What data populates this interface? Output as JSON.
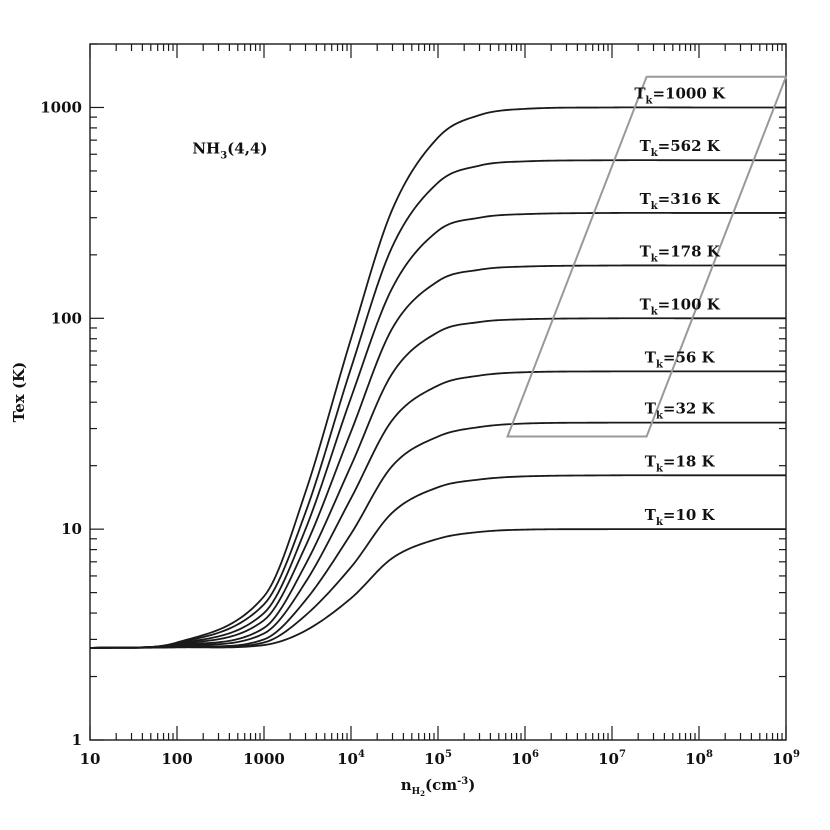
{
  "chart_data": {
    "type": "line",
    "xlabel": "n_H2(cm^-3)",
    "xlabel_parts": {
      "n": "n",
      "sub": "H",
      "subsub": "2",
      "rest": "(cm",
      "sup": "-3",
      "close": ")"
    },
    "ylabel": "Tex (K)",
    "xscale": "log",
    "yscale": "log",
    "xlim": [
      10,
      1000000000
    ],
    "ylim": [
      1,
      2000
    ],
    "x_tick_labels": [
      {
        "value": 10,
        "base": "10",
        "exp": ""
      },
      {
        "value": 100,
        "base": "100",
        "exp": ""
      },
      {
        "value": 1000,
        "base": "1000",
        "exp": ""
      },
      {
        "value": 10000,
        "base": "10",
        "exp": "4"
      },
      {
        "value": 100000,
        "base": "10",
        "exp": "5"
      },
      {
        "value": 1000000,
        "base": "10",
        "exp": "6"
      },
      {
        "value": 10000000,
        "base": "10",
        "exp": "7"
      },
      {
        "value": 100000000,
        "base": "10",
        "exp": "8"
      },
      {
        "value": 1000000000,
        "base": "10",
        "exp": "9"
      }
    ],
    "y_tick_labels": [
      {
        "value": 1,
        "text": "1"
      },
      {
        "value": 10,
        "text": "10"
      },
      {
        "value": 100,
        "text": "100"
      },
      {
        "value": 1000,
        "text": "1000"
      }
    ],
    "annotation": {
      "main": "NH",
      "sub": "3",
      "rest": "(4,4)",
      "x": 150,
      "y": 1000
    },
    "background_temperature": 2.73,
    "x_sample_points": [
      10,
      100,
      1000,
      3000,
      10000,
      30000,
      100000,
      300000,
      1000000,
      10000000,
      100000000,
      1000000000
    ],
    "series": [
      {
        "label": "T_k=1000 K",
        "Tk": 1000,
        "values": [
          2.73,
          2.9,
          4.8,
          15,
          80,
          330,
          720,
          920,
          985,
          1000,
          1000,
          1000
        ]
      },
      {
        "label": "T_k=562 K",
        "Tk": 562,
        "values": [
          2.73,
          2.88,
          4.4,
          12,
          58,
          220,
          440,
          530,
          555,
          562,
          562,
          562
        ]
      },
      {
        "label": "T_k=316 K",
        "Tk": 316,
        "values": [
          2.73,
          2.86,
          4.0,
          10,
          42,
          140,
          260,
          300,
          312,
          316,
          316,
          316
        ]
      },
      {
        "label": "T_k=178 K",
        "Tk": 178,
        "values": [
          2.73,
          2.84,
          3.7,
          8.3,
          29,
          90,
          150,
          170,
          176,
          178,
          178,
          178
        ]
      },
      {
        "label": "T_k=100 K",
        "Tk": 100,
        "values": [
          2.73,
          2.82,
          3.4,
          6.8,
          20,
          55,
          86,
          96,
          99,
          100,
          100,
          100
        ]
      },
      {
        "label": "T_k=56 K",
        "Tk": 56,
        "values": [
          2.73,
          2.8,
          3.2,
          5.6,
          14,
          33,
          48,
          53.5,
          55.5,
          56,
          56,
          56
        ]
      },
      {
        "label": "T_k=32 K",
        "Tk": 32,
        "values": [
          2.73,
          2.78,
          3.0,
          4.6,
          9.5,
          20,
          27.5,
          30.5,
          31.7,
          32,
          32,
          32
        ]
      },
      {
        "label": "T_k=18 K",
        "Tk": 18,
        "values": [
          2.73,
          2.76,
          2.9,
          3.9,
          6.6,
          12,
          15.8,
          17.2,
          17.8,
          18,
          18,
          18
        ]
      },
      {
        "label": "T_k=10 K",
        "Tk": 10,
        "values": [
          2.73,
          2.75,
          2.82,
          3.3,
          4.7,
          7.3,
          9.0,
          9.7,
          9.95,
          10,
          10,
          10
        ]
      }
    ],
    "parallelogram": {
      "description": "",
      "corners": [
        {
          "x": 630000,
          "y": 27.5
        },
        {
          "x": 25000000,
          "y": 27.5
        },
        {
          "x": 1000000000,
          "y": 1400
        },
        {
          "x": 25000000,
          "y": 1400
        }
      ],
      "color": "#999999"
    },
    "grid": false,
    "colors": {
      "curve": "#1a1a1a",
      "frame": "#1a1a1a",
      "box": "#999999"
    }
  }
}
